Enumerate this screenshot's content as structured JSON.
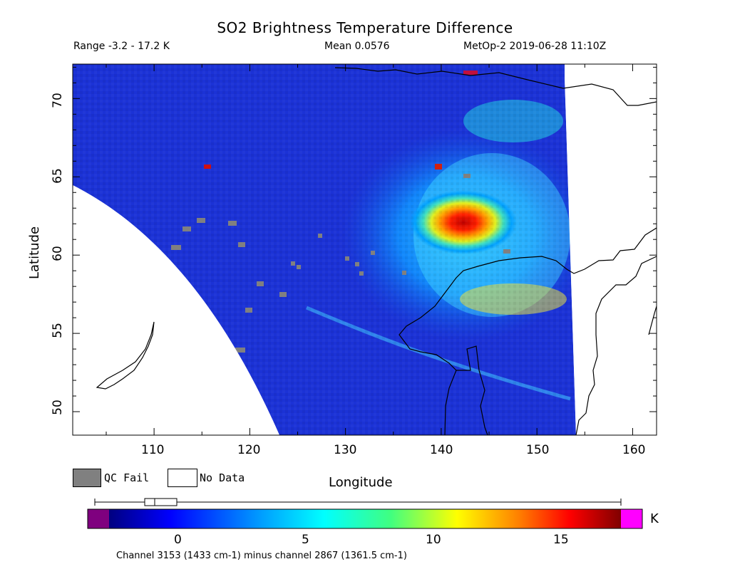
{
  "title": "SO2 Brightness Temperature Difference",
  "header": {
    "range": "Range -3.2 - 17.2 K",
    "mean": "Mean 0.0576",
    "satellite": "MetOp-2 2019-06-28 11:10Z"
  },
  "axes": {
    "xlabel": "Longitude",
    "ylabel": "Latitude",
    "xticks": [
      "110",
      "120",
      "130",
      "140",
      "150",
      "160"
    ],
    "yticks": [
      "50",
      "55",
      "60",
      "65",
      "70"
    ]
  },
  "legend": {
    "qc_fail": "QC Fail",
    "no_data": "No Data",
    "qc_fail_color": "#808080",
    "no_data_color": "#ffffff"
  },
  "colorbar": {
    "unit": "K",
    "ticks": [
      "0",
      "5",
      "10",
      "15"
    ],
    "under_color": "#7f007f",
    "over_color": "#ff00ff",
    "range": [
      -3.2,
      17.2
    ]
  },
  "footer": "Channel 3153 (1433 cm-1) minus channel 2867 (1361.5 cm-1)",
  "map": {
    "lon_range": [
      101.5,
      162.5
    ],
    "lat_range": [
      48.5,
      72.2
    ],
    "background_color": "#1b32d6",
    "hotspot_center": [
      141.5,
      62
    ],
    "hotspot_peak_K": 17.2
  }
}
